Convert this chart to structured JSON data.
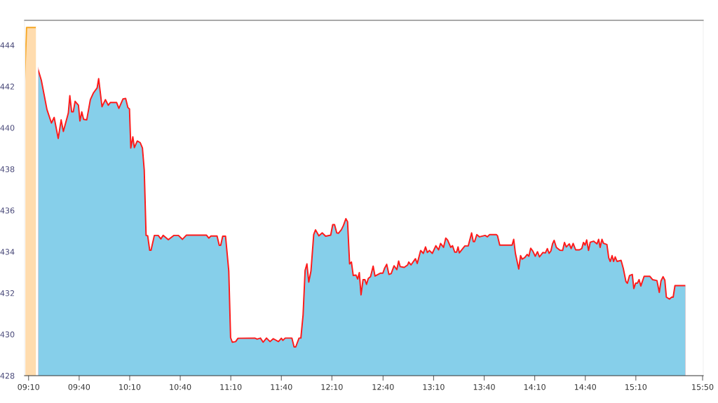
{
  "chart_data": {
    "type": "area",
    "ylim": [
      428,
      445.2
    ],
    "yticks": [
      428,
      430,
      432,
      434,
      436,
      438,
      440,
      442,
      444
    ],
    "xlim": [
      9.127,
      15.84
    ],
    "xticks": [
      {
        "value": 9.1667,
        "label": "09:10"
      },
      {
        "value": 9.667,
        "label": "09:40"
      },
      {
        "value": 10.167,
        "label": "10:10"
      },
      {
        "value": 10.667,
        "label": "10:40"
      },
      {
        "value": 11.167,
        "label": "11:10"
      },
      {
        "value": 11.667,
        "label": "11:40"
      },
      {
        "value": 12.167,
        "label": "12:10"
      },
      {
        "value": 12.673,
        "label": "12:40"
      },
      {
        "value": 13.173,
        "label": "13:10"
      },
      {
        "value": 13.673,
        "label": "13:40"
      },
      {
        "value": 14.173,
        "label": "14:10"
      },
      {
        "value": 14.673,
        "label": "14:40"
      },
      {
        "value": 15.173,
        "label": "15:10"
      },
      {
        "value": 15.8333,
        "label": "15:50"
      }
    ],
    "grid": false,
    "series": [
      {
        "color": "#f5a623",
        "x": [
          9.127,
          9.147,
          9.24,
          9.247
        ],
        "values": [
          442.23,
          444.85,
          444.85,
          444.92
        ]
      },
      {
        "color": "#ff1a1a",
        "x": [
          9.255,
          9.293,
          9.349,
          9.393,
          9.42,
          9.46,
          9.489,
          9.511,
          9.56,
          9.575,
          9.593,
          9.609,
          9.627,
          9.66,
          9.675,
          9.693,
          9.711,
          9.742,
          9.778,
          9.809,
          9.845,
          9.86,
          9.893,
          9.927,
          9.955,
          9.975,
          10.038,
          10.06,
          10.1,
          10.127,
          10.149,
          10.165,
          10.178,
          10.198,
          10.213,
          10.242,
          10.271,
          10.293,
          10.311,
          10.329,
          10.345,
          10.365,
          10.378,
          10.411,
          10.449,
          10.475,
          10.498,
          10.549,
          10.605,
          10.649,
          10.689,
          10.727,
          10.927,
          10.949,
          10.971,
          11.031,
          11.053,
          11.067,
          11.087,
          11.115,
          11.147,
          11.165,
          11.182,
          11.215,
          11.238,
          11.405,
          11.427,
          11.46,
          11.487,
          11.52,
          11.555,
          11.587,
          11.638,
          11.667,
          11.682,
          11.705,
          11.771,
          11.793,
          11.809,
          11.842,
          11.86,
          11.882,
          11.902,
          11.92,
          11.938,
          11.96,
          11.987,
          12.005,
          12.038,
          12.071,
          12.105,
          12.155,
          12.175,
          12.193,
          12.215,
          12.231,
          12.26,
          12.282,
          12.305,
          12.322,
          12.342,
          12.36,
          12.378,
          12.405,
          12.422,
          12.438,
          12.455,
          12.475,
          12.493,
          12.509,
          12.527,
          12.549,
          12.575,
          12.593,
          12.645,
          12.671,
          12.689,
          12.709,
          12.731,
          12.753,
          12.782,
          12.809,
          12.827,
          12.842,
          12.882,
          12.916,
          12.927,
          12.949,
          12.993,
          13.011,
          13.045,
          13.071,
          13.093,
          13.111,
          13.131,
          13.16,
          13.195,
          13.222,
          13.242,
          13.271,
          13.293,
          13.311,
          13.342,
          13.36,
          13.382,
          13.4,
          13.415,
          13.427,
          13.482,
          13.515,
          13.549,
          13.565,
          13.578,
          13.6,
          13.627,
          13.682,
          13.705,
          13.727,
          13.793,
          13.805,
          13.827,
          13.949,
          13.965,
          13.982,
          14.015,
          14.033,
          14.049,
          14.075,
          14.098,
          14.115,
          14.133,
          14.153,
          14.178,
          14.2,
          14.22,
          14.253,
          14.278,
          14.298,
          14.315,
          14.333,
          14.349,
          14.365,
          14.387,
          14.422,
          14.449,
          14.467,
          14.485,
          14.515,
          14.533,
          14.553,
          14.578,
          14.615,
          14.638,
          14.655,
          14.671,
          14.687,
          14.705,
          14.722,
          14.755,
          14.789,
          14.805,
          14.82,
          14.838,
          14.853,
          14.887,
          14.905,
          14.92,
          14.938,
          14.953,
          14.969,
          14.987,
          15.027,
          15.049,
          15.075,
          15.089,
          15.111,
          15.138,
          15.153,
          15.171,
          15.189,
          15.205,
          15.222,
          15.255,
          15.311,
          15.338,
          15.382,
          15.405,
          15.422,
          15.442,
          15.46,
          15.475,
          15.505,
          15.527,
          15.542,
          15.56,
          15.671
        ],
        "values": [
          442.92,
          442.3,
          440.88,
          440.23,
          440.5,
          439.48,
          440.38,
          439.82,
          440.71,
          441.55,
          440.77,
          440.77,
          441.28,
          441.09,
          440.33,
          440.77,
          440.41,
          440.38,
          441.36,
          441.69,
          441.93,
          442.38,
          441.02,
          441.36,
          441.09,
          441.22,
          441.22,
          440.94,
          441.39,
          441.42,
          440.98,
          440.91,
          439.02,
          439.56,
          439.04,
          439.36,
          439.28,
          439.02,
          437.95,
          434.79,
          434.77,
          434.07,
          434.07,
          434.79,
          434.79,
          434.62,
          434.79,
          434.58,
          434.79,
          434.79,
          434.6,
          434.8,
          434.8,
          434.66,
          434.76,
          434.76,
          434.31,
          434.31,
          434.75,
          434.75,
          433.07,
          429.84,
          429.62,
          429.65,
          429.81,
          429.82,
          429.77,
          429.82,
          429.62,
          429.82,
          429.65,
          429.79,
          429.65,
          429.81,
          429.71,
          429.82,
          429.82,
          429.39,
          429.39,
          429.82,
          429.82,
          430.95,
          433.1,
          433.41,
          432.53,
          433.07,
          434.83,
          435.06,
          434.77,
          434.91,
          434.75,
          434.8,
          435.31,
          435.31,
          434.91,
          434.89,
          435.06,
          435.28,
          435.6,
          435.45,
          433.41,
          433.5,
          432.85,
          432.87,
          432.68,
          432.99,
          431.91,
          432.65,
          432.65,
          432.42,
          432.71,
          432.79,
          433.3,
          432.82,
          432.96,
          432.96,
          433.21,
          433.39,
          432.9,
          432.94,
          433.32,
          433.13,
          433.55,
          433.28,
          433.24,
          433.36,
          433.5,
          433.36,
          433.66,
          433.43,
          434.06,
          433.92,
          434.23,
          433.96,
          434.06,
          433.92,
          434.29,
          434.09,
          434.4,
          434.21,
          434.66,
          434.57,
          434.21,
          434.29,
          433.98,
          433.98,
          434.23,
          433.94,
          434.28,
          434.28,
          434.91,
          434.49,
          434.49,
          434.83,
          434.72,
          434.79,
          434.72,
          434.83,
          434.83,
          434.77,
          434.32,
          434.32,
          434.6,
          433.92,
          433.16,
          433.81,
          433.64,
          433.72,
          433.87,
          433.78,
          434.17,
          434.04,
          433.78,
          434.0,
          433.75,
          433.96,
          433.94,
          434.15,
          433.92,
          434.04,
          434.38,
          434.55,
          434.21,
          434.07,
          434.06,
          434.45,
          434.23,
          434.38,
          434.15,
          434.4,
          434.09,
          434.09,
          434.15,
          434.45,
          434.32,
          434.57,
          434.06,
          434.46,
          434.51,
          434.38,
          434.6,
          434.21,
          434.6,
          434.41,
          434.35,
          433.7,
          433.53,
          433.81,
          433.53,
          433.75,
          433.53,
          433.58,
          433.19,
          432.56,
          432.47,
          432.85,
          432.9,
          432.22,
          432.48,
          432.48,
          432.65,
          432.34,
          432.81,
          432.81,
          432.65,
          432.6,
          432.03,
          432.59,
          432.79,
          432.62,
          431.8,
          431.71,
          431.8,
          431.8,
          432.36,
          432.36
        ]
      }
    ]
  }
}
